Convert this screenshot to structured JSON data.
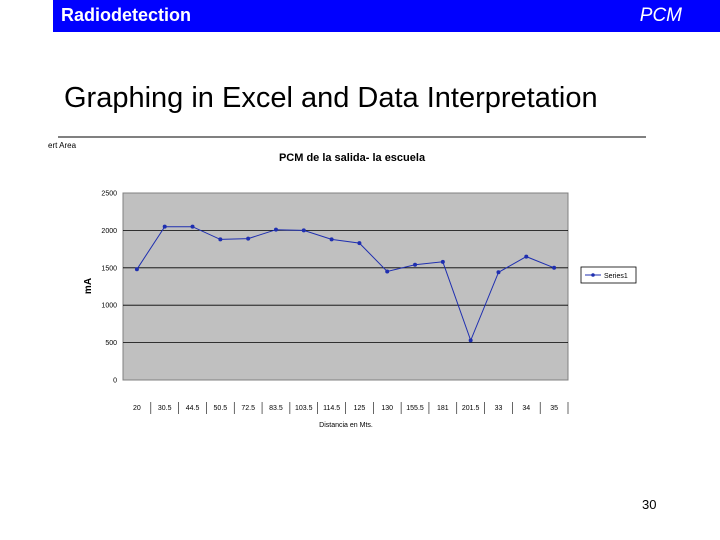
{
  "header": {
    "left_label": "Radiodetection",
    "right_label": "PCM"
  },
  "slide": {
    "title": "Graphing in Excel and Data Interpretation",
    "page_number": "30"
  },
  "colors": {
    "banner": "#0000ff",
    "plot_area": "#c0c0c0",
    "series": "#1f2fb0"
  },
  "chart_data": {
    "type": "line",
    "title": "PCM de la salida- la escuela",
    "xlabel": "Distancia en Mts.",
    "ylabel": "mA",
    "corner_label": "ert Area",
    "ylim": [
      0,
      2500
    ],
    "yticks": [
      0,
      500,
      1000,
      1500,
      2000,
      2500
    ],
    "grid": true,
    "legend_position": "right",
    "categories": [
      "20",
      "30.5",
      "44.5",
      "50.5",
      "72.5",
      "83.5",
      "103.5",
      "114.5",
      "125",
      "130",
      "155.5",
      "181",
      "201.5",
      "33",
      "34",
      "35"
    ],
    "series": [
      {
        "name": "Series1",
        "values": [
          1480,
          2050,
          2050,
          1880,
          1890,
          2010,
          2000,
          1880,
          1830,
          1450,
          1540,
          1580,
          530,
          1440,
          1650,
          1500
        ]
      }
    ]
  }
}
